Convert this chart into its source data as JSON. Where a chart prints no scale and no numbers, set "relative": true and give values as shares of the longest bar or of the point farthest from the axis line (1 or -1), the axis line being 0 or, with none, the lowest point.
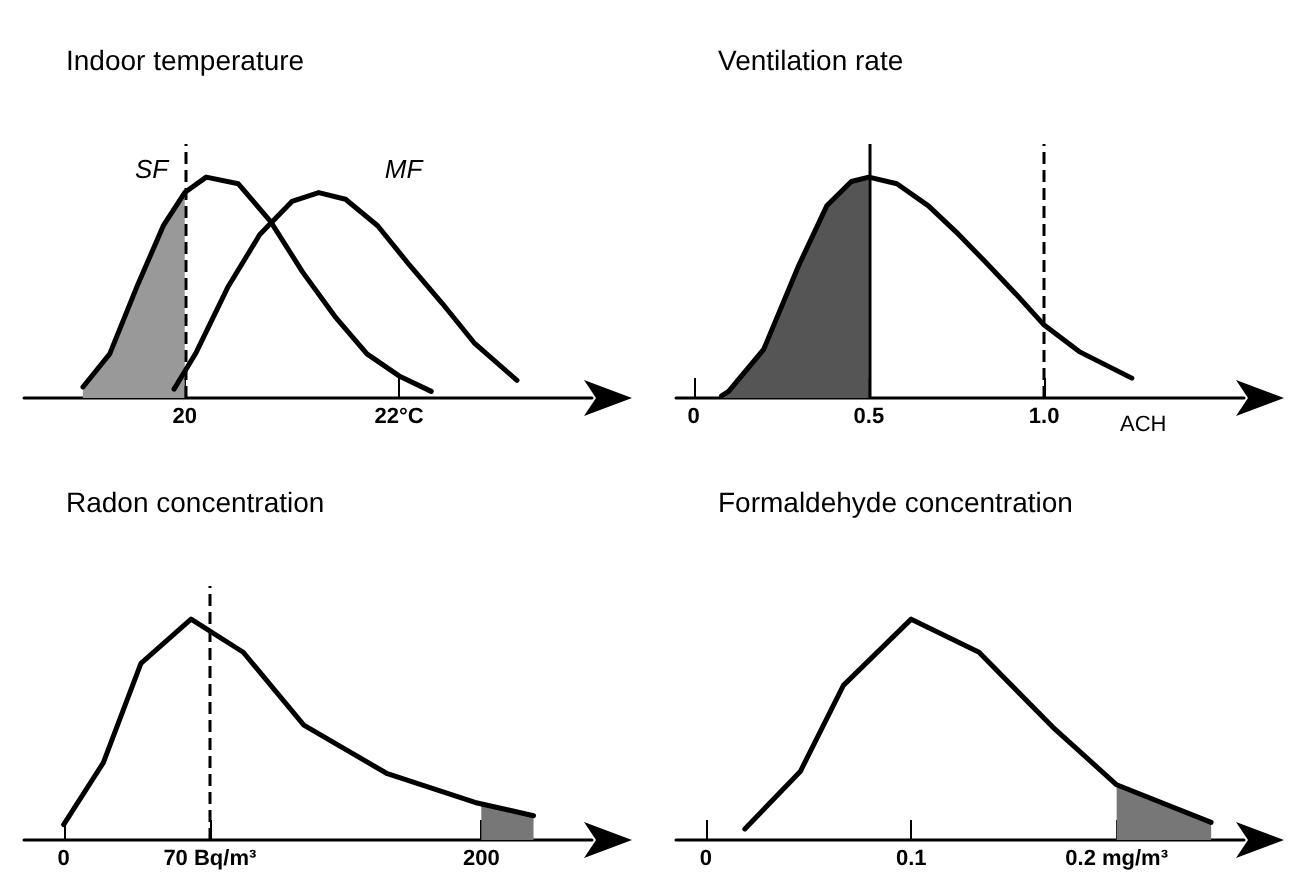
{
  "chart_data": [
    {
      "type": "line",
      "title": "Indoor temperature",
      "relative": true,
      "xlim": [
        18.5,
        23.8
      ],
      "xticks": [
        20,
        {
          "value": 22,
          "label": "22°C"
        }
      ],
      "tick_labels": "x",
      "grid": false,
      "legend": false,
      "marker": "none",
      "series": [
        {
          "name": "SF",
          "color": "#000000",
          "x": [
            19.05,
            19.3,
            19.55,
            19.8,
            20.0,
            20.2,
            20.5,
            20.8,
            21.1,
            21.4,
            21.7,
            22.0,
            22.3
          ],
          "values": [
            0.05,
            0.2,
            0.5,
            0.78,
            0.93,
            1.0,
            0.97,
            0.8,
            0.57,
            0.37,
            0.2,
            0.1,
            0.03
          ]
        },
        {
          "name": "MF",
          "color": "#000000",
          "x": [
            19.9,
            20.1,
            20.4,
            20.7,
            21.0,
            21.25,
            21.5,
            21.8,
            22.1,
            22.4,
            22.7,
            23.1
          ],
          "values": [
            0.04,
            0.2,
            0.5,
            0.74,
            0.89,
            0.93,
            0.9,
            0.78,
            0.6,
            0.43,
            0.25,
            0.08
          ]
        },
        {
          "type": "area",
          "color": "#999999",
          "x": [
            19.05,
            19.3,
            19.55,
            19.8,
            20.0
          ],
          "values": [
            0.05,
            0.2,
            0.5,
            0.78,
            0.93
          ]
        }
      ],
      "ref_lines": [
        {
          "axis": "x",
          "value": 20,
          "line_style": "dashed"
        }
      ]
    },
    {
      "type": "line",
      "title": "Ventilation rate",
      "xlabel": "ACH",
      "relative": true,
      "xlim": [
        -0.05,
        1.57
      ],
      "xticks": [
        0,
        0.5,
        {
          "value": 1,
          "label": "1.0"
        }
      ],
      "tick_labels": "x",
      "grid": false,
      "legend": false,
      "marker": "none",
      "series": [
        {
          "color": "#000000",
          "x": [
            0.08,
            0.1,
            0.2,
            0.3,
            0.38,
            0.45,
            0.5,
            0.58,
            0.67,
            0.75,
            0.83,
            0.92,
            1.0,
            1.1,
            1.25
          ],
          "values": [
            0.01,
            0.03,
            0.22,
            0.6,
            0.87,
            0.98,
            1.0,
            0.97,
            0.87,
            0.75,
            0.62,
            0.47,
            0.33,
            0.21,
            0.09
          ]
        },
        {
          "type": "area",
          "color": "#555555",
          "x": [
            0.08,
            0.1,
            0.2,
            0.3,
            0.38,
            0.45,
            0.5
          ],
          "values": [
            0.01,
            0.03,
            0.22,
            0.6,
            0.87,
            0.98,
            1.0
          ]
        }
      ],
      "ref_lines": [
        {
          "axis": "x",
          "value": 0.5,
          "line_style": "solid"
        },
        {
          "axis": "x",
          "value": 1,
          "line_style": "dashed"
        }
      ]
    },
    {
      "type": "line",
      "title": "Radon concentration",
      "relative": true,
      "xlim": [
        -19,
        253
      ],
      "xticks": [
        0,
        {
          "value": 70,
          "label": "70 Bq/m³"
        },
        200
      ],
      "tick_labels": "x",
      "grid": false,
      "legend": false,
      "marker": "none",
      "series": [
        {
          "color": "#000000",
          "x": [
            0,
            19,
            37,
            61,
            86,
            115,
            155,
            197,
            225
          ],
          "values": [
            0.07,
            0.35,
            0.8,
            1.0,
            0.85,
            0.52,
            0.3,
            0.17,
            0.11
          ]
        },
        {
          "type": "area",
          "color": "#777777",
          "x": [
            200,
            225
          ],
          "values": [
            0.16,
            0.11
          ]
        }
      ],
      "ref_lines": [
        {
          "axis": "x",
          "value": 70,
          "line_style": "dashed"
        }
      ]
    },
    {
      "type": "line",
      "title": "Formaldehyde concentration",
      "relative": true,
      "xlim": [
        -0.0145,
        0.262
      ],
      "xticks": [
        0,
        0.1,
        {
          "value": 0.2,
          "label": "0.2 mg/m³"
        }
      ],
      "tick_labels": "x",
      "grid": false,
      "legend": false,
      "marker": "none",
      "series": [
        {
          "color": "#000000",
          "x": [
            0.019,
            0.046,
            0.067,
            0.1,
            0.133,
            0.169,
            0.2,
            0.246
          ],
          "values": [
            0.05,
            0.31,
            0.7,
            1.0,
            0.85,
            0.51,
            0.25,
            0.08
          ]
        },
        {
          "type": "area",
          "color": "#777777",
          "x": [
            0.2,
            0.246
          ],
          "values": [
            0.25,
            0.08
          ]
        }
      ]
    }
  ]
}
